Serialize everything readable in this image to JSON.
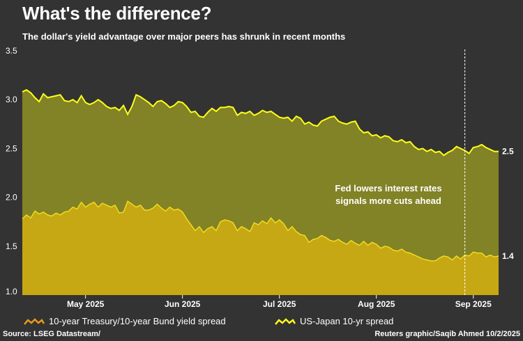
{
  "title": "What's the difference?",
  "subtitle": "The dollar's yield advantage over major peers has shrunk in recent months",
  "source": "Source: LSEG Datastream/",
  "credit": "Reuters graphic/Saqib Ahmed 10/2/2025",
  "annotation": {
    "line1": "Fed lowers interest rates",
    "line2": "signals more cuts ahead"
  },
  "colors": {
    "background": "#333333",
    "treasury_bund_fill": "#c6a814",
    "treasury_bund_line": "#f0dc1e",
    "us_japan_fill": "#828226",
    "us_japan_line": "#ffff1a",
    "axis_text": "#ffffff"
  },
  "chart_data": {
    "type": "area",
    "title": "What's the difference?",
    "ylim": [
      1.0,
      3.5
    ],
    "yticks": [
      "1.0",
      "1.5",
      "2.0",
      "2.5",
      "3.0",
      "3.5"
    ],
    "xlabels": [
      "May 2025",
      "Jun 2025",
      "Jul 2025",
      "Aug 2025",
      "Sep 2025"
    ],
    "xlabel_index": [
      15,
      38,
      61,
      84,
      107
    ],
    "event_index": [
      105
    ],
    "end_labels": [
      "2.5",
      "1.4"
    ],
    "series": [
      {
        "name": "US-Japan 10-yr spread",
        "values": [
          3.08,
          3.1,
          3.07,
          3.02,
          2.98,
          3.06,
          3.02,
          3.03,
          3.04,
          3.05,
          2.99,
          2.98,
          3.0,
          2.97,
          3.04,
          2.97,
          2.95,
          2.97,
          3.0,
          2.97,
          2.93,
          2.91,
          2.92,
          2.89,
          2.94,
          2.85,
          2.93,
          3.05,
          3.03,
          3.0,
          2.97,
          2.93,
          2.98,
          2.99,
          2.96,
          2.92,
          2.94,
          2.98,
          2.97,
          2.93,
          2.87,
          2.88,
          2.83,
          2.82,
          2.87,
          2.91,
          2.88,
          2.92,
          2.92,
          2.93,
          2.92,
          2.84,
          2.87,
          2.86,
          2.88,
          2.84,
          2.86,
          2.89,
          2.87,
          2.88,
          2.85,
          2.82,
          2.81,
          2.82,
          2.78,
          2.83,
          2.81,
          2.75,
          2.77,
          2.74,
          2.73,
          2.78,
          2.8,
          2.82,
          2.83,
          2.78,
          2.76,
          2.75,
          2.77,
          2.78,
          2.7,
          2.66,
          2.67,
          2.63,
          2.64,
          2.61,
          2.63,
          2.62,
          2.58,
          2.57,
          2.59,
          2.56,
          2.57,
          2.52,
          2.49,
          2.5,
          2.47,
          2.49,
          2.46,
          2.47,
          2.43,
          2.46,
          2.48,
          2.52,
          2.5,
          2.48,
          2.45,
          2.51,
          2.52,
          2.54,
          2.51,
          2.49,
          2.47,
          2.47
        ]
      },
      {
        "name": "10-year Treasury/10-year Bund yield spread",
        "values": [
          1.78,
          1.82,
          1.79,
          1.86,
          1.83,
          1.85,
          1.82,
          1.81,
          1.84,
          1.82,
          1.85,
          1.86,
          1.9,
          1.88,
          1.95,
          1.9,
          1.93,
          1.95,
          1.9,
          1.94,
          1.92,
          1.9,
          1.92,
          1.84,
          1.85,
          1.96,
          1.93,
          1.9,
          1.92,
          1.87,
          1.87,
          1.89,
          1.93,
          1.89,
          1.86,
          1.9,
          1.87,
          1.88,
          1.85,
          1.78,
          1.72,
          1.66,
          1.7,
          1.64,
          1.68,
          1.7,
          1.66,
          1.75,
          1.77,
          1.76,
          1.74,
          1.66,
          1.7,
          1.68,
          1.65,
          1.74,
          1.72,
          1.76,
          1.73,
          1.79,
          1.74,
          1.77,
          1.73,
          1.66,
          1.7,
          1.65,
          1.62,
          1.61,
          1.54,
          1.57,
          1.58,
          1.61,
          1.59,
          1.56,
          1.55,
          1.57,
          1.54,
          1.52,
          1.56,
          1.53,
          1.51,
          1.55,
          1.51,
          1.54,
          1.52,
          1.48,
          1.5,
          1.49,
          1.46,
          1.45,
          1.47,
          1.44,
          1.43,
          1.41,
          1.39,
          1.37,
          1.36,
          1.35,
          1.35,
          1.38,
          1.4,
          1.39,
          1.36,
          1.4,
          1.37,
          1.41,
          1.4,
          1.44,
          1.43,
          1.43,
          1.39,
          1.41,
          1.39,
          1.4
        ]
      }
    ]
  },
  "legend": {
    "item1": "10-year Treasury/10-year Bund yield spread",
    "item2": "US-Japan 10-yr spread"
  }
}
